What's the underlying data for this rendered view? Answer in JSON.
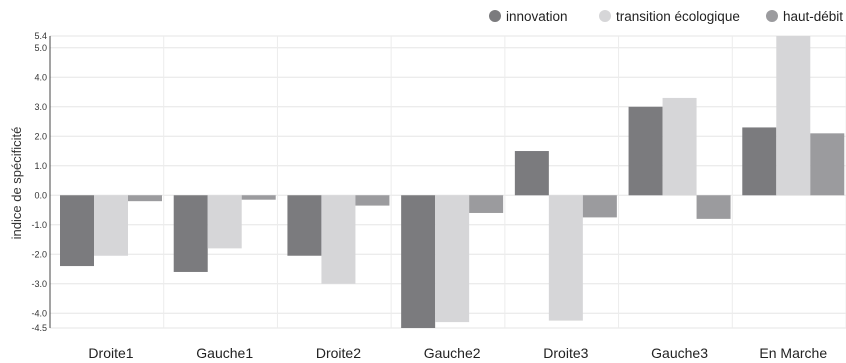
{
  "chart_data": {
    "type": "bar",
    "title": "",
    "xlabel": "",
    "ylabel": "indice de spécificité",
    "ylim": [
      -4.5,
      5.4
    ],
    "yticks": [
      5.4,
      5.0,
      4.0,
      3.0,
      2.0,
      1.0,
      0.0,
      -1.0,
      -2.0,
      -3.0,
      -4.0,
      -4.5
    ],
    "ytick_labels": [
      "5.4",
      "5.0",
      "4.0",
      "3.0",
      "2.0",
      "1.0",
      "0.0",
      "-1.0",
      "-2.0",
      "-3.0",
      "-4.0",
      "-4.5"
    ],
    "grid": true,
    "legend_position": "top-right",
    "categories": [
      "Droite1",
      "Gauche1",
      "Droite2",
      "Gauche2",
      "Droite3",
      "Gauche3",
      "En Marche"
    ],
    "series": [
      {
        "name": "innovation",
        "color": "#7b7b7e",
        "values": [
          -2.4,
          -2.6,
          -2.05,
          -4.5,
          1.5,
          3.0,
          2.3
        ]
      },
      {
        "name": "transition écologique",
        "color": "#d6d6d8",
        "values": [
          -2.05,
          -1.8,
          -3.0,
          -4.3,
          -4.25,
          3.3,
          5.4
        ]
      },
      {
        "name": "haut-débit",
        "color": "#9b9b9e",
        "values": [
          -0.2,
          -0.15,
          -0.35,
          -0.6,
          -0.75,
          -0.8,
          2.1
        ]
      }
    ]
  }
}
